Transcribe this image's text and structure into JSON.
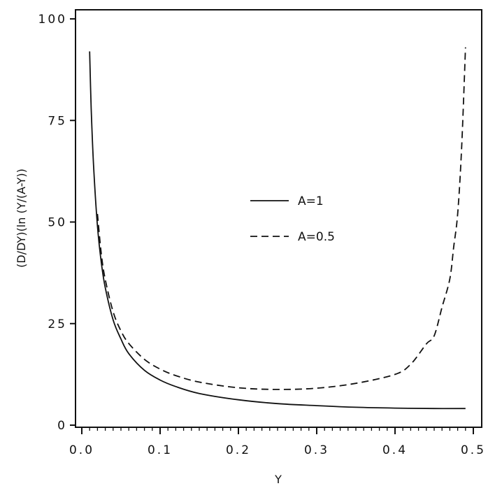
{
  "chart_data": {
    "type": "line",
    "title": "",
    "xlabel": "Y",
    "ylabel": "(D/DY)(ln (Y/(A-Y))",
    "xlim": [
      0.0,
      0.5
    ],
    "ylim": [
      0,
      100
    ],
    "x_ticks": [
      0.0,
      0.1,
      0.2,
      0.3,
      0.4,
      0.5
    ],
    "x_tick_labels": [
      "0.0",
      "0.1",
      "0.2",
      "0.3",
      "0.4",
      "0.5"
    ],
    "y_ticks": [
      0,
      25,
      50,
      75,
      100
    ],
    "y_tick_labels": [
      "0",
      "25",
      "50",
      "75",
      "100"
    ],
    "grid": false,
    "legend_position": "center-right",
    "series": [
      {
        "name": "A=1",
        "style": "solid",
        "x": [
          0.01,
          0.012,
          0.015,
          0.02,
          0.025,
          0.03,
          0.04,
          0.05,
          0.06,
          0.08,
          0.1,
          0.12,
          0.15,
          0.2,
          0.25,
          0.3,
          0.35,
          0.4,
          0.45,
          0.49
        ],
        "y": [
          92,
          78,
          64,
          49,
          39.9,
          33.8,
          25.9,
          21.2,
          17.6,
          13.5,
          11.1,
          9.5,
          7.8,
          6.25,
          5.3,
          4.8,
          4.4,
          4.2,
          4.1,
          4.1
        ]
      },
      {
        "name": "A=0.5",
        "style": "dashed",
        "x": [
          0.02,
          0.025,
          0.03,
          0.04,
          0.05,
          0.06,
          0.08,
          0.1,
          0.12,
          0.15,
          0.2,
          0.25,
          0.3,
          0.35,
          0.4,
          0.42,
          0.44,
          0.45,
          0.46,
          0.47,
          0.475,
          0.48,
          0.485,
          0.49
        ],
        "y": [
          52,
          42,
          35.8,
          27.9,
          23.2,
          20.1,
          16.2,
          13.8,
          12.2,
          10.6,
          9.2,
          8.8,
          9.1,
          10.3,
          12.5,
          15,
          20,
          22,
          29,
          36,
          44,
          52,
          68,
          93
        ]
      }
    ]
  }
}
